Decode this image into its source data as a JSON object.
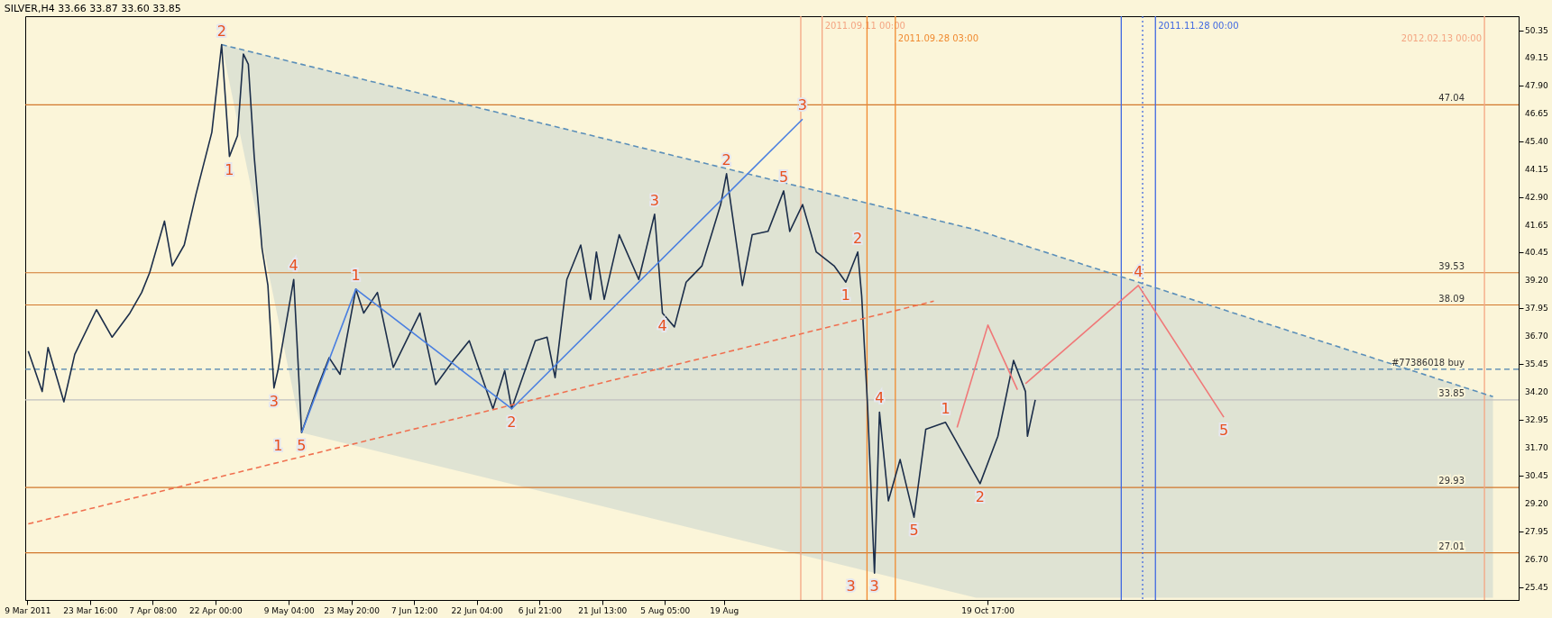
{
  "chart_data": {
    "type": "line",
    "title": "SILVER,H4  33.66 33.87 33.60 33.85",
    "xlim": [
      "2011-03-08T12:00",
      "2012-02-21T00:00"
    ],
    "ylim": [
      24.9,
      51.0
    ],
    "xticks": [
      {
        "value": "2011-03-09T00:00",
        "label": "9 Mar 2011"
      },
      {
        "value": "2011-03-23T16:00",
        "label": "23 Mar 16:00"
      },
      {
        "value": "2011-04-07T08:00",
        "label": "7 Apr 08:00"
      },
      {
        "value": "2011-04-22T00:00",
        "label": "22 Apr 00:00"
      },
      {
        "value": "2011-05-09T04:00",
        "label": "9 May 04:00"
      },
      {
        "value": "2011-05-23T20:00",
        "label": "23 May 20:00"
      },
      {
        "value": "2011-06-07T12:00",
        "label": "7 Jun 12:00"
      },
      {
        "value": "2011-06-22T04:00",
        "label": "22 Jun 04:00"
      },
      {
        "value": "2011-07-06T21:00",
        "label": "6 Jul 21:00"
      },
      {
        "value": "2011-07-21T13:00",
        "label": "21 Jul 13:00"
      },
      {
        "value": "2011-08-05T05:00",
        "label": "5 Aug 05:00"
      },
      {
        "value": "2011-08-19T00:00",
        "label": "19 Aug"
      },
      {
        "value": "2011-10-19T17:00",
        "label": "19 Oct 17:00"
      }
    ],
    "yticks": [
      {
        "value": 50.35,
        "label": "50.35"
      },
      {
        "value": 49.15,
        "label": "49.15"
      },
      {
        "value": 47.9,
        "label": "47.90"
      },
      {
        "value": 46.65,
        "label": "46.65"
      },
      {
        "value": 45.4,
        "label": "45.40"
      },
      {
        "value": 44.15,
        "label": "44.15"
      },
      {
        "value": 42.9,
        "label": "42.90"
      },
      {
        "value": 41.65,
        "label": "41.65"
      },
      {
        "value": 40.45,
        "label": "40.45"
      },
      {
        "value": 39.2,
        "label": "39.20"
      },
      {
        "value": 37.95,
        "label": "37.95"
      },
      {
        "value": 36.7,
        "label": "36.70"
      },
      {
        "value": 35.45,
        "label": "35.45"
      },
      {
        "value": 34.2,
        "label": "34.20"
      },
      {
        "value": 32.95,
        "label": "32.95"
      },
      {
        "value": 31.7,
        "label": "31.70"
      },
      {
        "value": 30.45,
        "label": "30.45"
      },
      {
        "value": 29.2,
        "label": "29.20"
      },
      {
        "value": 27.95,
        "label": "27.95"
      },
      {
        "value": 26.7,
        "label": "26.70"
      },
      {
        "value": 25.45,
        "label": "25.45"
      }
    ],
    "grid": false,
    "series": [
      {
        "type": "line",
        "color": "#5b8fb9",
        "line_style": "dashed",
        "x": [
          "2011-04-23T11:00",
          "2011-05-12T04:00",
          "2011-10-17T00:00",
          "2012-02-15T00:00"
        ],
        "values": [
          49.73,
          48.85,
          41.45,
          33.99
        ],
        "lower": [
          49.73,
          32.38,
          25.0,
          25.0
        ],
        "upper": [
          49.73,
          48.85,
          41.45,
          33.99
        ]
      },
      {
        "color": "#1c2e4a",
        "x": [
          "2011-03-09T05:00",
          "2011-03-12T11:00",
          "2011-03-13T20:00",
          "2011-03-17T13:00",
          "2011-03-20T02:00",
          "2011-03-25T04:00",
          "2011-03-28T20:00",
          "2011-04-02T00:00",
          "2011-04-04T18:00",
          "2011-04-06T15:00",
          "2011-04-10T02:00",
          "2011-04-11T22:00",
          "2011-04-14T17:00",
          "2011-04-17T11:00",
          "2011-04-21T04:00",
          "2011-04-23T11:00",
          "2011-04-25T07:00",
          "2011-04-27T04:00",
          "2011-04-28T13:00",
          "2011-04-29T17:00",
          "2011-05-01T02:00",
          "2011-05-02T22:00",
          "2011-05-04T07:00",
          "2011-05-05T17:00",
          "2011-05-06T15:00",
          "2011-05-10T08:00",
          "2011-05-11T06:00",
          "2011-05-12T04:00",
          "2011-05-15T21:00",
          "2011-05-18T15:00",
          "2011-05-21T04:00",
          "2011-05-24T21:00",
          "2011-05-26T17:00",
          "2011-05-29T22:00",
          "2011-06-02T15:00",
          "2011-06-08T21:00",
          "2011-06-12T13:00",
          "2011-06-16T17:00",
          "2011-06-20T10:00",
          "2011-06-25T23:00",
          "2011-06-28T17:00",
          "2011-06-30T08:00",
          "2011-07-05T21:00",
          "2011-07-08T15:00",
          "2011-07-10T12:00",
          "2011-07-13T06:00",
          "2011-07-16T12:00",
          "2011-07-18T19:00",
          "2011-07-20T04:00",
          "2011-07-22T00:00",
          "2011-07-25T12:00",
          "2011-07-30T02:00",
          "2011-08-02T19:00",
          "2011-08-04T15:00",
          "2011-08-07T10:00",
          "2011-08-10T04:00",
          "2011-08-13T21:00",
          "2011-08-18T06:00",
          "2011-08-19T15:00",
          "2011-08-23T08:00",
          "2011-08-25T15:00",
          "2011-08-29T08:00",
          "2011-09-02T00:00",
          "2011-09-03T10:00",
          "2011-09-06T10:00",
          "2011-09-09T15:00",
          "2011-09-13T19:00",
          "2011-09-16T13:00",
          "2011-09-19T08:00",
          "2011-09-20T06:00",
          "2011-09-21T15:00",
          "2011-09-23T06:00",
          "2011-09-24T10:00",
          "2011-09-26T12:00",
          "2011-09-29T06:00",
          "2011-10-02T12:00",
          "2011-10-05T06:00",
          "2011-10-09T21:00",
          "2011-10-17T23:00",
          "2011-10-22T03:00",
          "2011-10-25T19:00",
          "2011-10-28T14:00",
          "2011-10-29T01:00",
          "2011-10-30T21:00"
        ],
        "values": [
          36.03,
          34.22,
          36.19,
          33.76,
          35.88,
          37.88,
          36.65,
          37.73,
          38.65,
          39.54,
          41.84,
          39.84,
          40.77,
          43.04,
          45.81,
          49.73,
          44.73,
          45.65,
          49.31,
          48.85,
          44.73,
          40.61,
          38.96,
          34.38,
          35.15,
          39.23,
          35.88,
          32.38,
          34.38,
          35.73,
          34.99,
          38.8,
          37.73,
          38.65,
          35.3,
          37.73,
          34.53,
          35.61,
          36.49,
          33.45,
          35.15,
          33.45,
          36.49,
          36.65,
          34.84,
          39.23,
          40.77,
          38.34,
          40.46,
          38.34,
          41.23,
          39.23,
          42.15,
          37.73,
          37.11,
          39.11,
          39.84,
          42.58,
          43.96,
          38.96,
          41.23,
          41.38,
          43.19,
          41.38,
          42.58,
          40.46,
          39.84,
          39.11,
          40.46,
          38.5,
          33.61,
          26.1,
          33.3,
          29.33,
          31.18,
          28.6,
          32.53,
          32.84,
          30.1,
          32.22,
          35.61,
          34.22,
          32.22,
          33.85
        ]
      },
      {
        "type": "line",
        "color": "#f07050",
        "line_style": "dashed",
        "x": [
          "2011-03-09T05:00",
          "2011-10-07T03:00"
        ],
        "values": [
          28.3,
          38.26
        ]
      },
      {
        "type": "line",
        "color": "#4a7fe0",
        "x": [
          "2011-05-12T04:00",
          "2011-05-24T21:00",
          "2011-06-30T08:00",
          "2011-09-06T10:00"
        ],
        "values": [
          32.38,
          38.8,
          33.45,
          46.4
        ]
      },
      {
        "type": "line",
        "color": "#f07878",
        "x": [
          "2011-10-12T14:00",
          "2011-10-19T19:00",
          "2011-10-26T17:00"
        ],
        "values": [
          32.61,
          37.19,
          34.3
        ]
      },
      {
        "type": "line",
        "color": "#f07878",
        "x": [
          "2011-10-28T14:00",
          "2011-11-24T00:00",
          "2011-12-14T00:00"
        ],
        "values": [
          34.57,
          38.96,
          33.07
        ]
      }
    ],
    "ref_lines": [
      {
        "axis": "y",
        "value": 47.04,
        "label": "47.04",
        "color": "#d2772c"
      },
      {
        "axis": "y",
        "value": 39.53,
        "label": "39.53",
        "color": "#d2772c"
      },
      {
        "axis": "y",
        "value": 38.09,
        "label": "38.09",
        "color": "#d2772c"
      },
      {
        "axis": "y",
        "value": 29.93,
        "label": "29.93",
        "color": "#d2772c"
      },
      {
        "axis": "y",
        "value": 27.01,
        "label": "27.01",
        "color": "#d2772c"
      },
      {
        "axis": "y",
        "value": 35.22,
        "label": "#77386018 buy",
        "color": "#4a80b0",
        "line_style": "dashed"
      },
      {
        "axis": "y",
        "value": 33.85,
        "label": "33.85",
        "color": "#c0c0c0"
      },
      {
        "axis": "x",
        "value": "2011-09-06T00:00",
        "color": "#f4a582"
      },
      {
        "axis": "x",
        "value": "2011-09-11T00:00",
        "label": "2011.09.11 00:00",
        "color": "#f4a582"
      },
      {
        "axis": "x",
        "value": "2011-09-21T12:00",
        "color": "#f08a30"
      },
      {
        "axis": "x",
        "value": "2011-09-28T03:00",
        "label": "2011.09.28 03:00",
        "color": "#f08a30"
      },
      {
        "axis": "x",
        "value": "2011-11-20T00:00",
        "color": "#4169e1"
      },
      {
        "axis": "x",
        "value": "2011-11-25T00:00",
        "color": "#4169e1",
        "line_style": "dotted"
      },
      {
        "axis": "x",
        "value": "2011-11-28T00:00",
        "label": "2011.11.28 00:00",
        "color": "#4169e1"
      },
      {
        "axis": "x",
        "value": "2012-02-13T00:00",
        "label": "2012.02.13 00:00",
        "color": "#f4a582"
      }
    ],
    "annotations": [
      {
        "text": "2",
        "x": "2011-04-23T11:00",
        "y": 49.73
      },
      {
        "text": "1",
        "x": "2011-04-25T07:00",
        "y": 44.73
      },
      {
        "text": "4",
        "x": "2011-05-10T08:00",
        "y": 39.23
      },
      {
        "text": "3",
        "x": "2011-05-05T17:00",
        "y": 34.38
      },
      {
        "text": "5",
        "x": "2011-05-12T04:00",
        "y": 32.38
      },
      {
        "text": "1",
        "x": "2011-05-24T21:00",
        "y": 38.8
      },
      {
        "text": "2",
        "x": "2011-06-30T08:00",
        "y": 33.45
      },
      {
        "text": "3",
        "x": "2011-09-06T10:00",
        "y": 46.4
      },
      {
        "text": "1",
        "x": "2011-05-12T04:00",
        "y": 32.38
      },
      {
        "text": "2",
        "x": "2011-08-19T15:00",
        "y": 43.96
      },
      {
        "text": "3",
        "x": "2011-09-23T06:00",
        "y": 26.1
      },
      {
        "text": "4",
        "x": "2011-11-24T00:00",
        "y": 38.96
      },
      {
        "text": "5",
        "x": "2011-12-14T00:00",
        "y": 33.07
      },
      {
        "text": "3",
        "x": "2011-08-02T19:00",
        "y": 42.15
      },
      {
        "text": "4",
        "x": "2011-08-04T15:00",
        "y": 37.73
      },
      {
        "text": "5",
        "x": "2011-09-02T00:00",
        "y": 43.19
      },
      {
        "text": "2",
        "x": "2011-09-19T08:00",
        "y": 40.46
      },
      {
        "text": "1",
        "x": "2011-09-16T13:00",
        "y": 39.11
      },
      {
        "text": "4",
        "x": "2011-09-24T10:00",
        "y": 33.3
      },
      {
        "text": "5",
        "x": "2011-10-02T12:00",
        "y": 28.6
      },
      {
        "text": "3",
        "x": "2011-09-23T06:00",
        "y": 26.1
      },
      {
        "text": "1",
        "x": "2011-10-09T21:00",
        "y": 32.84
      },
      {
        "text": "2",
        "x": "2011-10-17T23:00",
        "y": 30.1
      }
    ]
  }
}
